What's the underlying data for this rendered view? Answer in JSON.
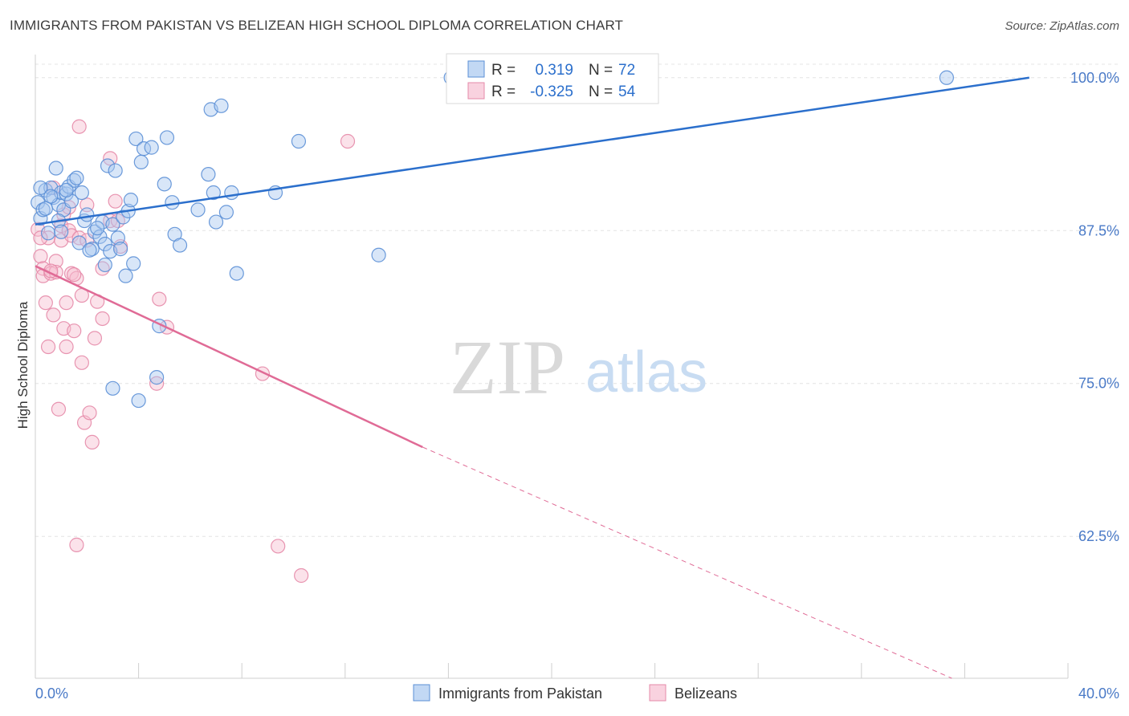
{
  "title": "IMMIGRANTS FROM PAKISTAN VS BELIZEAN HIGH SCHOOL DIPLOMA CORRELATION CHART",
  "source": "Source: ZipAtlas.com",
  "watermark": {
    "zip": "ZIP",
    "atlas": "atlas"
  },
  "colors": {
    "blue_fill": "#a8c8f0",
    "blue_stroke": "#5b8fd6",
    "blue_line": "#2b6fcc",
    "pink_fill": "#f7bfd1",
    "pink_stroke": "#e58aa8",
    "pink_line": "#e06b96",
    "tick_text": "#4a7ac7",
    "grid": "#e4e4e4"
  },
  "chart_data": {
    "type": "scatter",
    "title": "IMMIGRANTS FROM PAKISTAN VS BELIZEAN HIGH SCHOOL DIPLOMA CORRELATION CHART",
    "xlabel": "",
    "ylabel": "High School Diploma",
    "xlim": [
      0,
      40
    ],
    "ylim": [
      50.9,
      101.1
    ],
    "x_tick_labels": {
      "left": "0.0%",
      "right": "40.0%"
    },
    "y_ticks": [
      62.5,
      75.0,
      87.5,
      100.0
    ],
    "y_tick_labels": [
      "62.5%",
      "75.0%",
      "87.5%",
      "100.0%"
    ],
    "legend": {
      "position": "top-center",
      "entries": [
        {
          "r_label": "R =",
          "r_value": "0.319",
          "n_label": "N =",
          "n_value": "72"
        },
        {
          "r_label": "R =",
          "r_value": "-0.325",
          "n_label": "N =",
          "n_value": "54"
        }
      ]
    },
    "bottom_legend": [
      "Immigrants from Pakistan",
      "Belizeans"
    ],
    "series": [
      {
        "name": "Immigrants from Pakistan",
        "color": "#5b8fd6",
        "trend": {
          "x0": 0,
          "y0": 88.0,
          "x1": 38.5,
          "y1": 100.0
        },
        "points": [
          [
            0.1,
            89.8
          ],
          [
            0.2,
            88.5
          ],
          [
            0.3,
            89.2
          ],
          [
            0.4,
            90.8
          ],
          [
            0.5,
            87.3
          ],
          [
            0.6,
            91.0
          ],
          [
            0.7,
            90.2
          ],
          [
            0.8,
            92.6
          ],
          [
            0.9,
            89.6
          ],
          [
            1.0,
            90.6
          ],
          [
            1.1,
            89.2
          ],
          [
            1.2,
            90.5
          ],
          [
            1.3,
            91.1
          ],
          [
            1.4,
            89.9
          ],
          [
            1.5,
            91.6
          ],
          [
            1.6,
            91.8
          ],
          [
            1.7,
            86.5
          ],
          [
            1.8,
            90.6
          ],
          [
            1.9,
            88.3
          ],
          [
            2.0,
            88.8
          ],
          [
            2.2,
            86.0
          ],
          [
            2.3,
            87.4
          ],
          [
            2.5,
            87.0
          ],
          [
            2.6,
            88.2
          ],
          [
            2.7,
            86.4
          ],
          [
            2.8,
            92.8
          ],
          [
            2.9,
            85.8
          ],
          [
            3.0,
            88.0
          ],
          [
            3.1,
            92.4
          ],
          [
            3.2,
            86.9
          ],
          [
            3.3,
            86.0
          ],
          [
            3.4,
            88.6
          ],
          [
            3.5,
            83.8
          ],
          [
            3.6,
            89.1
          ],
          [
            3.7,
            90.0
          ],
          [
            3.8,
            84.8
          ],
          [
            3.9,
            95.0
          ],
          [
            4.0,
            73.6
          ],
          [
            4.1,
            93.1
          ],
          [
            4.2,
            94.2
          ],
          [
            4.5,
            94.3
          ],
          [
            4.7,
            75.5
          ],
          [
            4.8,
            79.7
          ],
          [
            5.0,
            91.3
          ],
          [
            5.1,
            95.1
          ],
          [
            5.3,
            89.8
          ],
          [
            5.4,
            87.2
          ],
          [
            5.6,
            86.3
          ],
          [
            6.3,
            89.2
          ],
          [
            6.7,
            92.1
          ],
          [
            6.8,
            97.4
          ],
          [
            6.9,
            90.6
          ],
          [
            7.0,
            88.2
          ],
          [
            7.2,
            97.7
          ],
          [
            7.4,
            89.0
          ],
          [
            7.6,
            90.6
          ],
          [
            7.8,
            84.0
          ],
          [
            9.3,
            90.6
          ],
          [
            10.2,
            94.8
          ],
          [
            13.3,
            85.5
          ],
          [
            16.1,
            100.0
          ],
          [
            35.3,
            100.0
          ],
          [
            0.2,
            91.0
          ],
          [
            0.4,
            89.3
          ],
          [
            0.6,
            90.3
          ],
          [
            0.9,
            88.3
          ],
          [
            1.2,
            90.8
          ],
          [
            2.1,
            85.9
          ],
          [
            2.4,
            87.7
          ],
          [
            1.0,
            87.4
          ],
          [
            3.0,
            74.6
          ],
          [
            2.7,
            84.7
          ]
        ]
      },
      {
        "name": "Belizeans",
        "color": "#e58aa8",
        "trend": {
          "x0": 0,
          "y0": 84.6,
          "x1": 15.0,
          "y1": 69.8
        },
        "trend_dashed": {
          "x0": 15.0,
          "y0": 69.8,
          "x1": 35.5,
          "y1": 50.9
        },
        "points": [
          [
            0.1,
            87.6
          ],
          [
            0.2,
            85.4
          ],
          [
            0.3,
            84.4
          ],
          [
            0.3,
            83.8
          ],
          [
            0.4,
            81.6
          ],
          [
            0.5,
            86.9
          ],
          [
            0.5,
            78.0
          ],
          [
            0.6,
            84.0
          ],
          [
            0.7,
            80.6
          ],
          [
            0.7,
            91.0
          ],
          [
            0.8,
            85.0
          ],
          [
            0.8,
            84.1
          ],
          [
            0.9,
            72.9
          ],
          [
            1.0,
            87.9
          ],
          [
            1.0,
            86.7
          ],
          [
            1.1,
            79.5
          ],
          [
            1.1,
            88.8
          ],
          [
            1.2,
            81.6
          ],
          [
            1.2,
            78.0
          ],
          [
            1.3,
            87.5
          ],
          [
            1.3,
            89.4
          ],
          [
            1.4,
            87.1
          ],
          [
            1.4,
            84.0
          ],
          [
            1.5,
            79.3
          ],
          [
            1.6,
            83.6
          ],
          [
            1.6,
            61.8
          ],
          [
            1.7,
            86.9
          ],
          [
            1.7,
            96.0
          ],
          [
            1.8,
            82.2
          ],
          [
            1.8,
            76.7
          ],
          [
            1.9,
            71.8
          ],
          [
            2.0,
            89.6
          ],
          [
            2.0,
            86.7
          ],
          [
            2.1,
            72.6
          ],
          [
            2.2,
            70.2
          ],
          [
            2.3,
            78.7
          ],
          [
            2.4,
            81.7
          ],
          [
            2.6,
            80.3
          ],
          [
            2.6,
            84.4
          ],
          [
            2.9,
            88.3
          ],
          [
            2.9,
            93.4
          ],
          [
            3.1,
            89.9
          ],
          [
            3.2,
            88.3
          ],
          [
            3.3,
            86.2
          ],
          [
            4.7,
            75.0
          ],
          [
            4.8,
            81.9
          ],
          [
            5.1,
            79.6
          ],
          [
            8.8,
            75.8
          ],
          [
            9.4,
            61.7
          ],
          [
            10.3,
            59.3
          ],
          [
            12.1,
            94.8
          ],
          [
            0.2,
            86.9
          ],
          [
            0.6,
            84.2
          ],
          [
            1.5,
            83.9
          ]
        ]
      }
    ]
  }
}
